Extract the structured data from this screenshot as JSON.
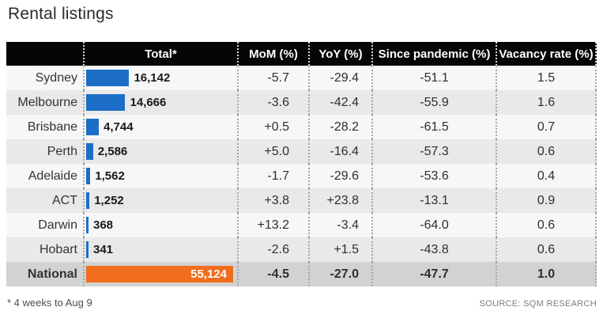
{
  "title": "Rental listings",
  "footnote": "* 4 weeks to Aug 9",
  "source": "SOURCE: SQM RESEARCH",
  "colors": {
    "bar_blue": "#1c6ec6",
    "bar_orange": "#f06e1d",
    "header_bg": "#050505",
    "row_base": "#f7f7f7",
    "row_alt": "#e9e9e9",
    "national_row_bg": "#d2d2d2"
  },
  "chart_data": {
    "type": "table",
    "title": "Rental listings",
    "bar_max": 55124,
    "columns": [
      "",
      "Total*",
      "MoM (%)",
      "YoY (%)",
      "Since pandemic (%)",
      "Vacancy rate (%)"
    ],
    "rows": [
      {
        "label": "Sydney",
        "total": 16142,
        "total_display": "16,142",
        "mom": "-5.7",
        "yoy": "-29.4",
        "since_pandemic": "-51.1",
        "vacancy": "1.5",
        "highlight": false
      },
      {
        "label": "Melbourne",
        "total": 14666,
        "total_display": "14,666",
        "mom": "-3.6",
        "yoy": "-42.4",
        "since_pandemic": "-55.9",
        "vacancy": "1.6",
        "highlight": false
      },
      {
        "label": "Brisbane",
        "total": 4744,
        "total_display": "4,744",
        "mom": "+0.5",
        "yoy": "-28.2",
        "since_pandemic": "-61.5",
        "vacancy": "0.7",
        "highlight": false
      },
      {
        "label": "Perth",
        "total": 2586,
        "total_display": "2,586",
        "mom": "+5.0",
        "yoy": "-16.4",
        "since_pandemic": "-57.3",
        "vacancy": "0.6",
        "highlight": false
      },
      {
        "label": "Adelaide",
        "total": 1562,
        "total_display": "1,562",
        "mom": "-1.7",
        "yoy": "-29.6",
        "since_pandemic": "-53.6",
        "vacancy": "0.4",
        "highlight": false
      },
      {
        "label": "ACT",
        "total": 1252,
        "total_display": "1,252",
        "mom": "+3.8",
        "yoy": "+23.8",
        "since_pandemic": "-13.1",
        "vacancy": "0.9",
        "highlight": false
      },
      {
        "label": "Darwin",
        "total": 368,
        "total_display": "368",
        "mom": "+13.2",
        "yoy": "-3.4",
        "since_pandemic": "-64.0",
        "vacancy": "0.6",
        "highlight": false
      },
      {
        "label": "Hobart",
        "total": 341,
        "total_display": "341",
        "mom": "-2.6",
        "yoy": "+1.5",
        "since_pandemic": "-43.8",
        "vacancy": "0.6",
        "highlight": false
      },
      {
        "label": "National",
        "total": 55124,
        "total_display": "55,124",
        "mom": "-4.5",
        "yoy": "-27.0",
        "since_pandemic": "-47.7",
        "vacancy": "1.0",
        "highlight": true
      }
    ]
  }
}
